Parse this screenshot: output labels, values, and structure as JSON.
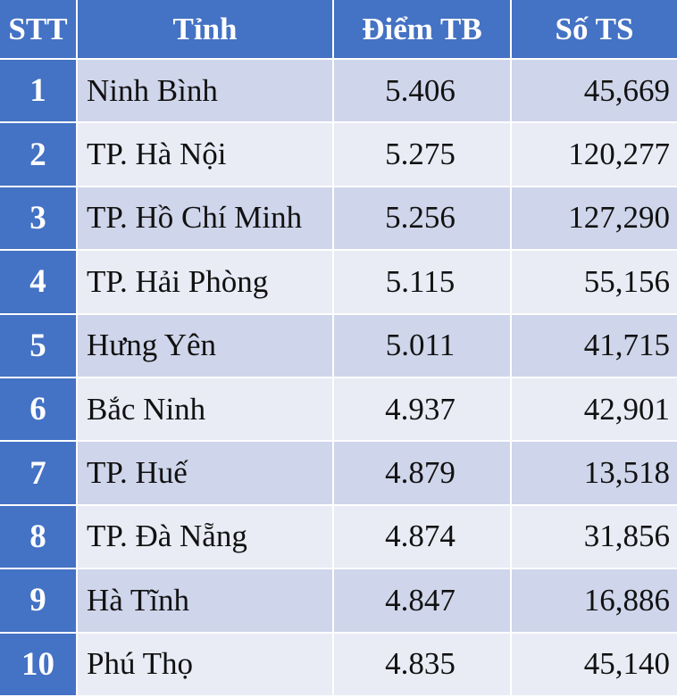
{
  "header": {
    "stt": "STT",
    "province": "Tỉnh",
    "avg_score": "Điểm TB",
    "candidates": "Số TS"
  },
  "rows": [
    {
      "stt": "1",
      "province": "Ninh Bình",
      "avg_score": "5.406",
      "candidates": "45,669"
    },
    {
      "stt": "2",
      "province": "TP. Hà Nội",
      "avg_score": "5.275",
      "candidates": "120,277"
    },
    {
      "stt": "3",
      "province": "TP. Hồ Chí Minh",
      "avg_score": "5.256",
      "candidates": "127,290"
    },
    {
      "stt": "4",
      "province": "TP. Hải Phòng",
      "avg_score": "5.115",
      "candidates": "55,156"
    },
    {
      "stt": "5",
      "province": "Hưng Yên",
      "avg_score": "5.011",
      "candidates": "41,715"
    },
    {
      "stt": "6",
      "province": "Bắc Ninh",
      "avg_score": "4.937",
      "candidates": "42,901"
    },
    {
      "stt": "7",
      "province": "TP. Huế",
      "avg_score": "4.879",
      "candidates": "13,518"
    },
    {
      "stt": "8",
      "province": "TP. Đà Nẵng",
      "avg_score": "4.874",
      "candidates": "31,856"
    },
    {
      "stt": "9",
      "province": "Hà Tĩnh",
      "avg_score": "4.847",
      "candidates": "16,886"
    },
    {
      "stt": "10",
      "province": "Phú Thọ",
      "avg_score": "4.835",
      "candidates": "45,140"
    }
  ],
  "colors": {
    "header_bg": "#4472c4",
    "row_odd_bg": "#cfd5ea",
    "row_even_bg": "#e9ebf5",
    "header_text": "#ffffff",
    "body_text": "#111111"
  }
}
